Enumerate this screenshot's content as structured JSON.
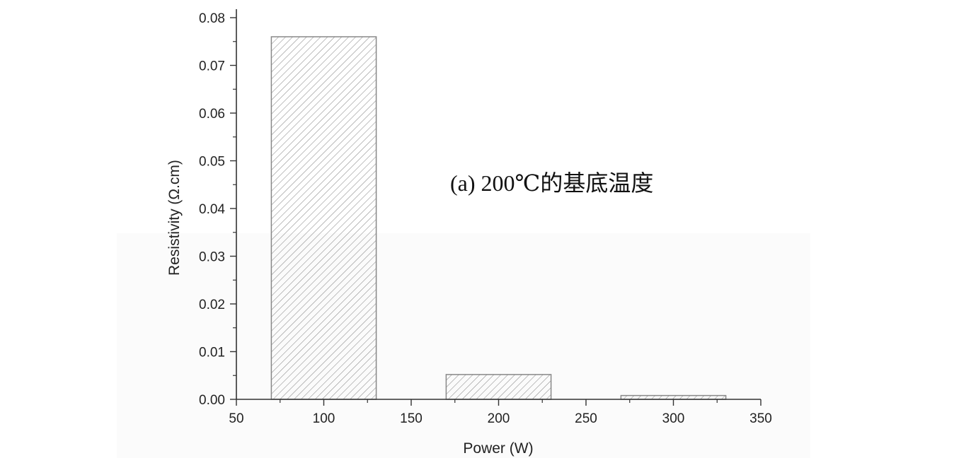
{
  "chart_data": {
    "type": "bar",
    "title": "",
    "annotation": "(a) 200℃的基底温度",
    "xlabel": "Power (W)",
    "ylabel": "Resistivity (Ω.cm)",
    "xlim": [
      50,
      350
    ],
    "ylim": [
      0,
      0.08
    ],
    "x_ticks": [
      "50",
      "100",
      "150",
      "200",
      "250",
      "300",
      "350"
    ],
    "y_ticks": [
      "0.00",
      "0.01",
      "0.02",
      "0.03",
      "0.04",
      "0.05",
      "0.06",
      "0.07",
      "0.08"
    ],
    "bar_width": 60,
    "x": [
      100,
      200,
      300
    ],
    "values": [
      0.076,
      0.0052,
      0.0008
    ],
    "grid": false,
    "bar_fill": "hatched"
  },
  "colors": {
    "axis": "#333333",
    "bar_edge": "#888888",
    "hatch": "#8a8a8a",
    "text": "#222222"
  }
}
